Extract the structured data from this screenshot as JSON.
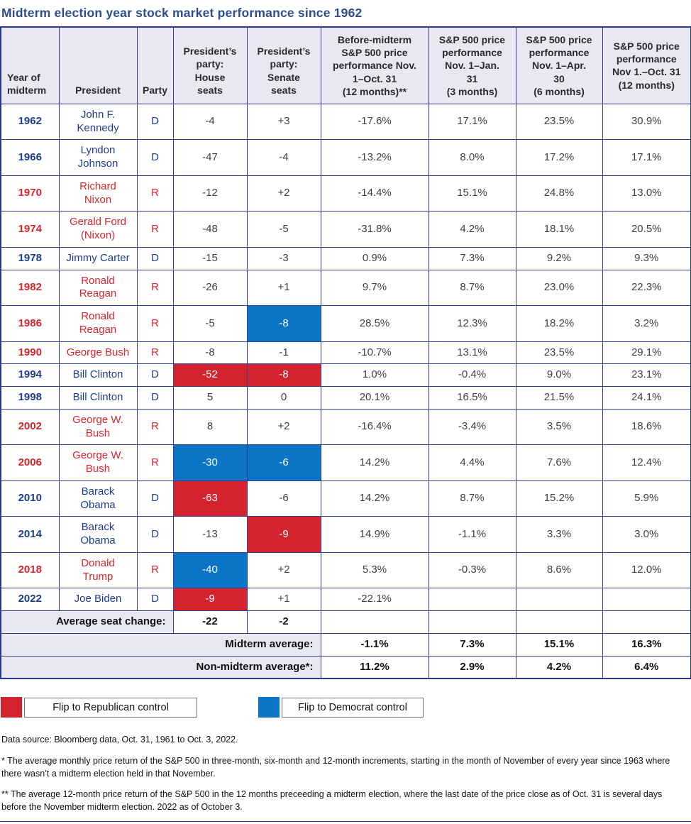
{
  "title": "Midterm election year stock market performance since 1962",
  "colors": {
    "title_navy": "#2d4d8e",
    "democrat_text": "#1e3d8c",
    "republican_text": "#d7262c",
    "flip_republican_bg": "#d2232e",
    "flip_democrat_bg": "#0b74c5",
    "header_bg": "#e9e8f1",
    "grid_line": "#333f94"
  },
  "chart_data": {
    "type": "table",
    "title": "Midterm election year stock market performance since 1962",
    "columns": [
      "Year of\nmidterm",
      "President",
      "Party",
      "President’s\nparty:\nHouse\nseats",
      "President’s\nparty:\nSenate\nseats",
      "Before-midterm\nS&P 500 price\nperformance Nov.\n1–Oct. 31\n(12 months)**",
      "S&P 500 price\nperformance\nNov. 1–Jan.\n31\n(3 months)",
      "S&P 500 price\nperformance\nNov. 1–Apr.\n30\n(6 months)",
      "S&P 500 price\nperformance\nNov 1.–Oct. 31\n(12 months)"
    ],
    "rows": [
      {
        "year": "1962",
        "president": "John F.\nKennedy",
        "party": "D",
        "house": "-4",
        "senate": "+3",
        "house_flip": null,
        "senate_flip": null,
        "perf": [
          "-17.6%",
          "17.1%",
          "23.5%",
          "30.9%"
        ]
      },
      {
        "year": "1966",
        "president": "Lyndon\nJohnson",
        "party": "D",
        "house": "-47",
        "senate": "-4",
        "house_flip": null,
        "senate_flip": null,
        "perf": [
          "-13.2%",
          "8.0%",
          "17.2%",
          "17.1%"
        ]
      },
      {
        "year": "1970",
        "president": "Richard\nNixon",
        "party": "R",
        "house": "-12",
        "senate": "+2",
        "house_flip": null,
        "senate_flip": null,
        "perf": [
          "-14.4%",
          "15.1%",
          "24.8%",
          "13.0%"
        ]
      },
      {
        "year": "1974",
        "president": "Gerald Ford\n(Nixon)",
        "party": "R",
        "house": "-48",
        "senate": "-5",
        "house_flip": null,
        "senate_flip": null,
        "perf": [
          "-31.8%",
          "4.2%",
          "18.1%",
          "20.5%"
        ]
      },
      {
        "year": "1978",
        "president": "Jimmy Carter",
        "party": "D",
        "house": "-15",
        "senate": "-3",
        "house_flip": null,
        "senate_flip": null,
        "perf": [
          "0.9%",
          "7.3%",
          "9.2%",
          "9.3%"
        ]
      },
      {
        "year": "1982",
        "president": "Ronald\nReagan",
        "party": "R",
        "house": "-26",
        "senate": "+1",
        "house_flip": null,
        "senate_flip": null,
        "perf": [
          "9.7%",
          "8.7%",
          "23.0%",
          "22.3%"
        ]
      },
      {
        "year": "1986",
        "president": "Ronald\nReagan",
        "party": "R",
        "house": "-5",
        "senate": "-8",
        "house_flip": null,
        "senate_flip": "democrat",
        "perf": [
          "28.5%",
          "12.3%",
          "18.2%",
          "3.2%"
        ]
      },
      {
        "year": "1990",
        "president": "George Bush",
        "party": "R",
        "house": "-8",
        "senate": "-1",
        "house_flip": null,
        "senate_flip": null,
        "perf": [
          "-10.7%",
          "13.1%",
          "23.5%",
          "29.1%"
        ]
      },
      {
        "year": "1994",
        "president": "Bill Clinton",
        "party": "D",
        "house": "-52",
        "senate": "-8",
        "house_flip": "republican",
        "senate_flip": "republican",
        "perf": [
          "1.0%",
          "-0.4%",
          "9.0%",
          "23.1%"
        ]
      },
      {
        "year": "1998",
        "president": "Bill Clinton",
        "party": "D",
        "house": "5",
        "senate": "0",
        "house_flip": null,
        "senate_flip": null,
        "perf": [
          "20.1%",
          "16.5%",
          "21.5%",
          "24.1%"
        ]
      },
      {
        "year": "2002",
        "president": "George W.\nBush",
        "party": "R",
        "house": "8",
        "senate": "+2",
        "house_flip": null,
        "senate_flip": null,
        "perf": [
          "-16.4%",
          "-3.4%",
          "3.5%",
          "18.6%"
        ]
      },
      {
        "year": "2006",
        "president": "George W.\nBush",
        "party": "R",
        "house": "-30",
        "senate": "-6",
        "house_flip": "democrat",
        "senate_flip": "democrat",
        "perf": [
          "14.2%",
          "4.4%",
          "7.6%",
          "12.4%"
        ]
      },
      {
        "year": "2010",
        "president": "Barack\nObama",
        "party": "D",
        "house": "-63",
        "senate": "-6",
        "house_flip": "republican",
        "senate_flip": null,
        "perf": [
          "14.2%",
          "8.7%",
          "15.2%",
          "5.9%"
        ]
      },
      {
        "year": "2014",
        "president": "Barack\nObama",
        "party": "D",
        "house": "-13",
        "senate": "-9",
        "house_flip": null,
        "senate_flip": "republican",
        "perf": [
          "14.9%",
          "-1.1%",
          "3.3%",
          "3.0%"
        ]
      },
      {
        "year": "2018",
        "president": "Donald\nTrump",
        "party": "R",
        "house": "-40",
        "senate": "+2",
        "house_flip": "democrat",
        "senate_flip": null,
        "perf": [
          "5.3%",
          "-0.3%",
          "8.6%",
          "12.0%"
        ]
      },
      {
        "year": "2022",
        "president": "Joe Biden",
        "party": "D",
        "house": "-9",
        "senate": "+1",
        "house_flip": "republican",
        "senate_flip": null,
        "perf": [
          "-22.1%",
          "",
          "",
          ""
        ]
      }
    ],
    "summary": {
      "avg_seat": {
        "label": "Average seat change:",
        "house": "-22",
        "senate": "-2"
      },
      "midterm": {
        "label": "Midterm average:",
        "values": [
          "-1.1%",
          "7.3%",
          "15.1%",
          "16.3%"
        ]
      },
      "non_midterm": {
        "label": "Non-midterm average*:",
        "values": [
          "11.2%",
          "2.9%",
          "4.2%",
          "6.4%"
        ]
      }
    }
  },
  "legend": [
    {
      "label": "Flip to Republican control",
      "color": "#d2232e"
    },
    {
      "label": "Flip to Democrat control",
      "color": "#0b74c5"
    }
  ],
  "footnotes": [
    "Data source: Bloomberg data, Oct. 31, 1961 to Oct. 3, 2022.",
    "* The average monthly price return of the S&P 500 in three-month, six-month and 12-month increments, starting in the month of November of every year since 1963 where there wasn’t a midterm election held in that November.",
    "** The average 12-month price return of the S&P 500 in the 12 months preceeding a midterm election, where the last date of the price close as of Oct. 31 is several days before the November midterm election. 2022 as of October 3."
  ]
}
